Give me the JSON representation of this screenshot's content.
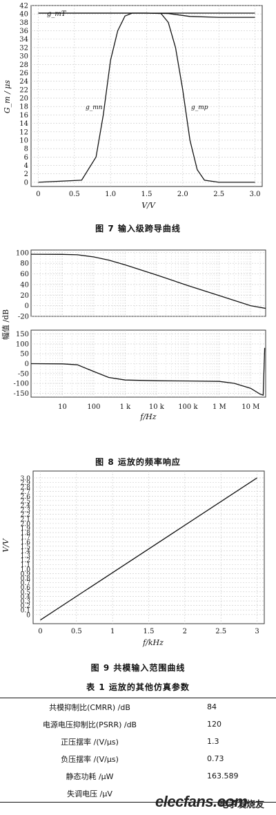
{
  "figures": [
    {
      "caption": "图 7   输入级跨导曲线",
      "ylabel": "G_m / μs",
      "xlabel": "V/V",
      "annotations": [
        "g_mT",
        "g_mn",
        "g_mp"
      ]
    },
    {
      "caption": "图 8   运放的频率响应",
      "ylabel": "幅值 /dB",
      "xlabel": "f/Hz"
    },
    {
      "caption": "图 9   共模输入范围曲线",
      "ylabel": "V/V",
      "xlabel": "f/kHz"
    }
  ],
  "chart_data": [
    {
      "type": "line",
      "xlabel": "V/V",
      "ylabel": "G_m / μs",
      "xlim": [
        -0.1,
        3.1
      ],
      "ylim": [
        -1,
        42
      ],
      "x_ticks": [
        "0",
        "0.5",
        "1.0",
        "1.5",
        "2.0",
        "2.5",
        "3.0"
      ],
      "y_ticks": [
        "0",
        "2",
        "4",
        "6",
        "8",
        "10",
        "12",
        "14",
        "16",
        "18",
        "20",
        "22",
        "24",
        "26",
        "28",
        "30",
        "32",
        "34",
        "36",
        "38",
        "40",
        "42"
      ],
      "grid": true,
      "series": [
        {
          "name": "g_mT",
          "x": [
            0,
            0.5,
            1.0,
            1.5,
            1.8,
            2.1,
            2.5,
            3.0
          ],
          "y": [
            40.2,
            40.2,
            40.2,
            40.2,
            40.1,
            39.4,
            39.2,
            39.2
          ]
        },
        {
          "name": "g_mn",
          "x": [
            0,
            0.6,
            0.8,
            0.9,
            1.0,
            1.1,
            1.2,
            1.3,
            1.5,
            3.0
          ],
          "y": [
            0,
            0.5,
            6,
            16,
            29,
            36,
            39.5,
            40.2,
            40.2,
            40.2
          ]
        },
        {
          "name": "g_mp",
          "x": [
            0,
            1.5,
            1.7,
            1.8,
            1.9,
            2.0,
            2.1,
            2.2,
            2.3,
            2.5,
            3.0
          ],
          "y": [
            40.2,
            40.2,
            40.1,
            38,
            32,
            22,
            10,
            3,
            0.5,
            0,
            0
          ]
        }
      ]
    },
    {
      "type": "line",
      "xlabel": "f/Hz",
      "ylabel": "幅值 /dB",
      "x_scale": "log",
      "xlim": [
        1,
        30000000
      ],
      "x_ticks": [
        "10",
        "100",
        "1 k",
        "10 k",
        "100 k",
        "1 M",
        "10 M"
      ],
      "grid": true,
      "panels": [
        {
          "ylim": [
            -20,
            105
          ],
          "y_ticks": [
            "-20",
            "0",
            "20",
            "40",
            "60",
            "80",
            "100"
          ],
          "x": [
            1,
            10,
            30,
            100,
            300,
            1000,
            10000,
            100000,
            1000000,
            10000000,
            30000000
          ],
          "y": [
            97,
            96.8,
            96,
            92,
            86,
            77,
            58,
            38,
            19,
            0,
            -5
          ]
        },
        {
          "ylim": [
            -170,
            170
          ],
          "y_ticks": [
            "-150",
            "-100",
            "-50",
            "0",
            "50",
            "100",
            "150"
          ],
          "x": [
            1,
            10,
            30,
            100,
            300,
            1000,
            10000,
            100000,
            1000000,
            3000000,
            10000000,
            20000000,
            25000000,
            28000000
          ],
          "y": [
            0,
            -1,
            -6,
            -40,
            -70,
            -83,
            -87,
            -88,
            -90,
            -100,
            -125,
            -155,
            -160,
            80
          ]
        }
      ]
    },
    {
      "type": "line",
      "xlabel": "f/kHz",
      "ylabel": "V/V",
      "xlim": [
        -0.1,
        3.1
      ],
      "ylim": [
        -0.2,
        3.15
      ],
      "x_ticks": [
        "0",
        "0.5",
        "1",
        "1.5",
        "2",
        "2.5",
        "3"
      ],
      "y_ticks": [
        "0",
        "0.1",
        "0.2",
        "0.3",
        "0.4",
        "0.5",
        "0.6",
        "0.7",
        "0.8",
        "0.9",
        "1.0",
        "1.1",
        "1.2",
        "1.3",
        "1.4",
        "1.5",
        "1.6",
        "1.7",
        "1.8",
        "1.9",
        "2.0",
        "2.1",
        "2.2",
        "2.3",
        "2.4",
        "2.5",
        "2.6",
        "2.7",
        "2.8",
        "2.9",
        "3.0"
      ],
      "grid": true,
      "series": [
        {
          "x": [
            0,
            3
          ],
          "y": [
            -0.12,
            3.0
          ]
        }
      ]
    }
  ],
  "table": {
    "title": "表 1   运放的其他仿真参数",
    "rows": [
      {
        "label": "共模抑制比(CMRR) /dB",
        "value": "84"
      },
      {
        "label": "电源电压抑制比(PSRR) /dB",
        "value": "120"
      },
      {
        "label": "正压摆率 /(V/μs)",
        "value": "1.3"
      },
      {
        "label": "负压摆率 /(V/μs)",
        "value": "0.73"
      },
      {
        "label": "静态功耗 /μW",
        "value": "163.589"
      },
      {
        "label": "失调电压 /μV",
        "value": ""
      }
    ]
  },
  "watermark": {
    "text": "elecfans.com",
    "cn": "电子发烧友"
  }
}
